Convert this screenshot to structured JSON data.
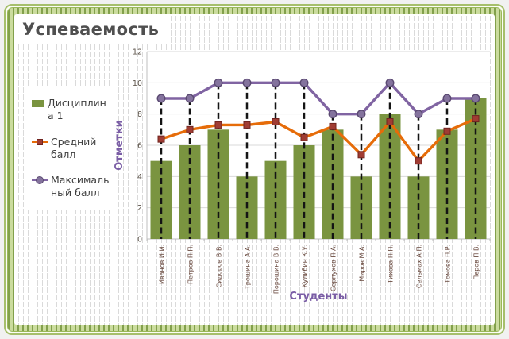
{
  "chart_data": {
    "type": "combo-bar-line",
    "title": "Успеваемость",
    "categories": [
      "Иванов И.И.",
      "Петров П.П.",
      "Сидоров В.В.",
      "Трошина А.А.",
      "Порошина В.В.",
      "Кулибин К.У.",
      "Серпухов П.А.",
      "Миров М.А.",
      "Тихова П.П.",
      "Сельмах А.П.",
      "Томова П.Р.",
      "Перов П.В."
    ],
    "series": [
      {
        "name": "Дисциплина 1",
        "type": "bar",
        "color": "#7A9440",
        "values": [
          5,
          6,
          7,
          4,
          5,
          6,
          7,
          4,
          8,
          4,
          7,
          9
        ]
      },
      {
        "name": "Средний балл",
        "type": "line",
        "marker": "square",
        "color": "#E66C09",
        "marker_color": "#A03C33",
        "marker_edge": "#70241F",
        "values": [
          6.4,
          7,
          7.3,
          7.3,
          7.5,
          6.5,
          7.2,
          5.4,
          7.5,
          5,
          6.9,
          7.7
        ]
      },
      {
        "name": "Максимальный балл",
        "type": "line",
        "marker": "circle",
        "color": "#8064A2",
        "marker_color": "#84739D",
        "marker_edge": "#5B4A72",
        "drop_lines": true,
        "values": [
          9,
          9,
          10,
          10,
          10,
          10,
          8,
          8,
          10,
          8,
          9,
          9
        ]
      }
    ],
    "xlabel": "Студенты",
    "ylabel": "Отметки",
    "ylim": [
      0,
      12
    ],
    "ytick_step": 2,
    "grid": true,
    "legend_position": "left"
  },
  "colors": {
    "page_bg": "#f1f1f1",
    "frame_green": "#9ab859",
    "band_light": "#cbdc9e",
    "band_dark": "#82a04b",
    "pinstripe": "#dadada",
    "title_text": "#4f4f4f",
    "grid": "#d9d9d9",
    "axis_line": "#bfbfbf",
    "tick_label": "#5a5147",
    "x_tick_label": "#6a4a3f",
    "axis_title": "#7a5da5",
    "legend_text": "#3f3f3f",
    "drop_line": "#141414",
    "plot_bg": "#ffffff",
    "legend_bg": "#ffffff"
  }
}
